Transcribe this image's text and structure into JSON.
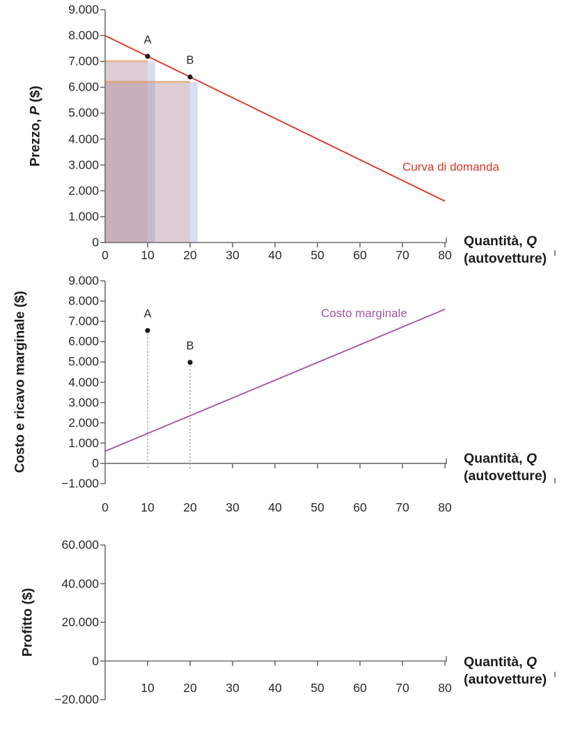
{
  "figure": {
    "x_axis_label": {
      "prefix": "Quantità, ",
      "italic": "Q",
      "line2": "(autovetture)"
    }
  },
  "chart_data": [
    {
      "id": "price",
      "type": "line",
      "ylabel": {
        "prefix": "Prezzo, ",
        "italic": "P",
        "suffix": " ($)"
      },
      "xlim": [
        0,
        80
      ],
      "ylim": [
        0,
        9000
      ],
      "grid": false,
      "y_ticks": [
        9000,
        8000,
        7000,
        6000,
        5000,
        4000,
        3000,
        2000,
        1000,
        0
      ],
      "y_tick_labels": [
        "9.000",
        "8.000",
        "7.000",
        "6.000",
        "5.000",
        "4.000",
        "3.000",
        "2.000",
        "1.000",
        "0"
      ],
      "x_ticks": [
        0,
        10,
        20,
        30,
        40,
        50,
        60,
        70,
        80
      ],
      "x_tick_labels": [
        "0",
        "10",
        "20",
        "30",
        "40",
        "50",
        "60",
        "70",
        "80"
      ],
      "x_tick_marks": [
        10,
        20,
        30,
        40,
        50,
        60,
        70,
        80
      ],
      "series": [
        {
          "name": "Curva di domanda",
          "color": "#dc372a",
          "x": [
            0,
            80
          ],
          "y": [
            8000,
            1600
          ]
        }
      ],
      "points": [
        {
          "label": "A",
          "x": 10,
          "y": 7200,
          "drop_line": false
        },
        {
          "label": "B",
          "x": 20,
          "y": 6400,
          "drop_line": false
        }
      ],
      "rects": [
        {
          "name": "revenue-strip-A",
          "x0": 10,
          "x1": 11.8,
          "y0": 0,
          "y1": 7000,
          "fill": "rgba(168,185,224,0.45)"
        },
        {
          "name": "revenue-rect-A",
          "x0": 0,
          "x1": 10,
          "y0": 0,
          "y1": 7050,
          "fill": "rgba(175,138,155,0.42)",
          "top_edge": "rgba(236,160,84,0.5)"
        },
        {
          "name": "revenue-strip-B",
          "x0": 20,
          "x1": 21.8,
          "y0": 0,
          "y1": 6200,
          "fill": "rgba(168,185,224,0.45)"
        },
        {
          "name": "revenue-rect-B",
          "x0": 0,
          "x1": 20,
          "y0": 0,
          "y1": 6250,
          "fill": "rgba(175,138,155,0.42)",
          "top_edge": "rgba(236,160,84,0.5)"
        }
      ]
    },
    {
      "id": "mc",
      "type": "line",
      "ylabel": {
        "prefix": "Costo e ricavo marginale ($)",
        "italic": "",
        "suffix": ""
      },
      "xlim": [
        0,
        80
      ],
      "ylim": [
        -1000,
        9000
      ],
      "grid": false,
      "y_ticks": [
        9000,
        8000,
        7000,
        6000,
        5000,
        4000,
        3000,
        2000,
        1000,
        0,
        -1000
      ],
      "y_tick_labels": [
        "9.000",
        "8.000",
        "7.000",
        "6.000",
        "5.000",
        "4.000",
        "3.000",
        "2.000",
        "1.000",
        "0",
        "−1.000"
      ],
      "x_ticks": [
        0,
        10,
        20,
        30,
        40,
        50,
        60,
        70,
        80
      ],
      "x_tick_labels": [
        "0",
        "10",
        "20",
        "30",
        "40",
        "50",
        "60",
        "70",
        "80"
      ],
      "x_tick_marks": [
        30,
        40,
        50,
        60,
        70,
        80
      ],
      "series": [
        {
          "name": "Costo marginale",
          "color": "#a458a0",
          "x": [
            0,
            80
          ],
          "y": [
            600,
            7600
          ]
        }
      ],
      "points": [
        {
          "label": "A",
          "x": 10,
          "y": 6550,
          "drop_line": true
        },
        {
          "label": "B",
          "x": 20,
          "y": 4980,
          "drop_line": true
        }
      ],
      "rects": []
    },
    {
      "id": "profit",
      "type": "line",
      "ylabel": {
        "prefix": "Profitto ($)",
        "italic": "",
        "suffix": ""
      },
      "xlim": [
        0,
        80
      ],
      "ylim": [
        -20000,
        60000
      ],
      "grid": false,
      "y_ticks": [
        60000,
        40000,
        20000,
        0,
        -20000
      ],
      "y_tick_labels": [
        "60.000",
        "40.000",
        "20.000",
        "0",
        "−20.000"
      ],
      "x_ticks": [
        10,
        20,
        30,
        40,
        50,
        60,
        70,
        80
      ],
      "x_tick_labels": [
        "10",
        "20",
        "30",
        "40",
        "50",
        "60",
        "70",
        "80"
      ],
      "x_tick_marks": [
        10,
        20,
        30,
        40,
        50,
        60,
        70,
        80
      ],
      "series": [],
      "points": [],
      "rects": []
    }
  ]
}
